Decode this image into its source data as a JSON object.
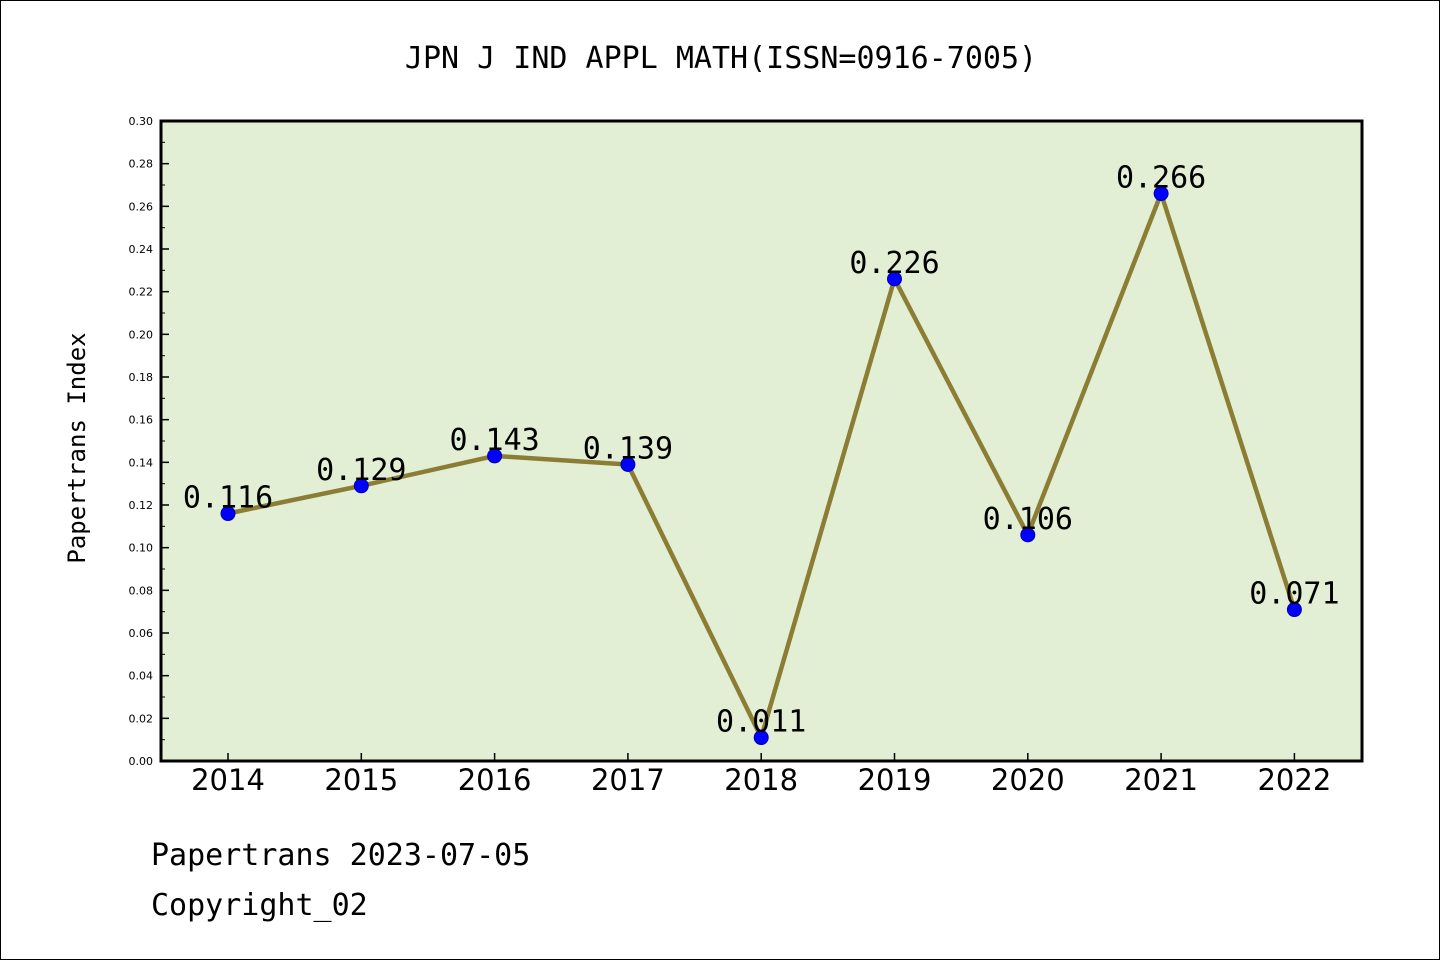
{
  "chart_data": {
    "type": "line",
    "title": "JPN J IND APPL MATH(ISSN=0916-7005)",
    "ylabel": "Papertrans Index",
    "xlabel": "",
    "categories": [
      "2014",
      "2015",
      "2016",
      "2017",
      "2018",
      "2019",
      "2020",
      "2021",
      "2022"
    ],
    "values": [
      0.116,
      0.129,
      0.143,
      0.139,
      0.011,
      0.226,
      0.106,
      0.266,
      0.071
    ],
    "data_labels": [
      "0.116",
      "0.129",
      "0.143",
      "0.139",
      "0.011",
      "0.226",
      "0.106",
      "0.266",
      "0.071"
    ],
    "ylim": [
      0,
      0.3
    ],
    "yticks": [
      "0.00",
      "0.02",
      "0.04",
      "0.06",
      "0.08",
      "0.10",
      "0.12",
      "0.14",
      "0.16",
      "0.18",
      "0.20",
      "0.22",
      "0.24",
      "0.26",
      "0.28",
      "0.30"
    ],
    "grid": false,
    "colors": {
      "plot_background": "#e2efd5",
      "line": "#8c7d35",
      "marker": "#0000ff"
    }
  },
  "footer": {
    "line1": "Papertrans 2023-07-05",
    "line2": "Copyright_02"
  }
}
